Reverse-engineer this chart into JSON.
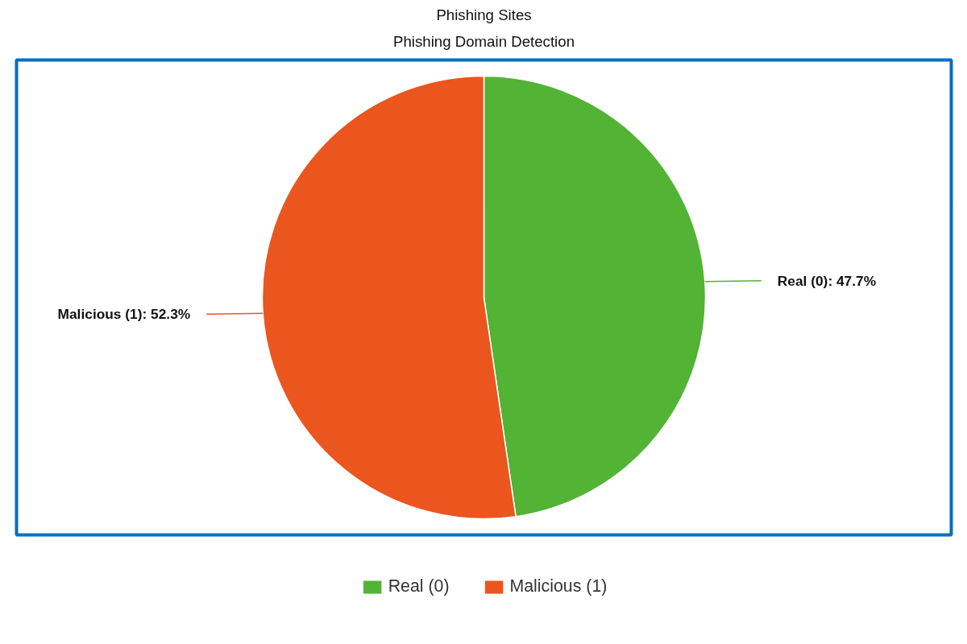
{
  "chart_data": {
    "type": "pie",
    "title": "Phishing Sites",
    "subtitle": "Phishing Domain Detection",
    "categories": [
      "Real (0)",
      "Malicious (1)"
    ],
    "values": [
      47.7,
      52.3
    ],
    "colors": [
      "#52b335",
      "#eb551e"
    ],
    "value_labels": [
      "Real (0): 47.7%",
      "Malicious (1): 52.3%"
    ],
    "legend": "bottom"
  }
}
